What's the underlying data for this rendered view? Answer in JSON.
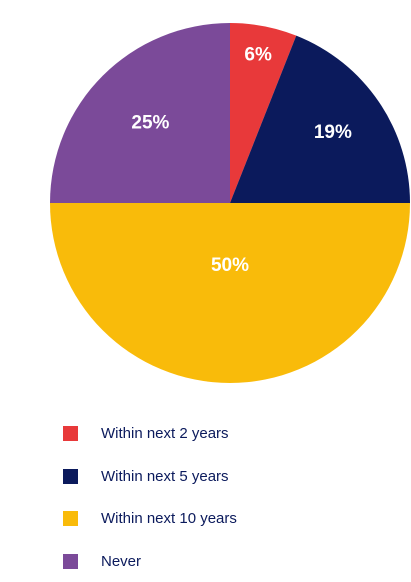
{
  "chart_data": {
    "type": "pie",
    "categories": [
      "Within next 2 years",
      "Within next 5 years",
      "Within next 10 years",
      "Never"
    ],
    "values": [
      6,
      19,
      50,
      25
    ],
    "value_labels": [
      "6%",
      "19%",
      "50%",
      "25%"
    ],
    "colors": [
      "#e8393a",
      "#0b1a5c",
      "#f9bb0a",
      "#7b4a99"
    ]
  }
}
